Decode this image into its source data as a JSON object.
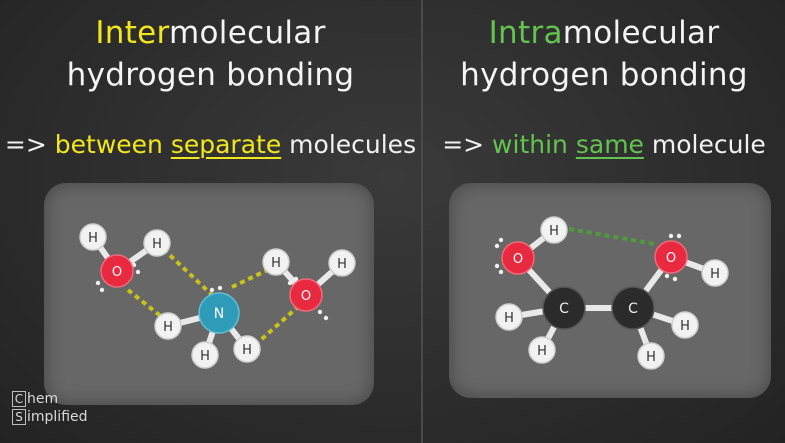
{
  "left_panel": {
    "title_highlight": "Inter",
    "title_rest": "molecular",
    "title_line2": "hydrogen bonding",
    "arrow": "=>",
    "sub_pre": "between",
    "sub_emph": "separate",
    "sub_post": "molecules",
    "atoms": {
      "H": "H",
      "O": "O",
      "N": "N"
    }
  },
  "right_panel": {
    "title_highlight": "Intra",
    "title_rest": "molecular",
    "title_line2": "hydrogen bonding",
    "arrow": "=>",
    "sub_pre": "within",
    "sub_emph": "same",
    "sub_post": "molecule",
    "atoms": {
      "H": "H",
      "O": "O",
      "C": "C"
    }
  },
  "logo": {
    "letter1": "C",
    "word1": "hem",
    "letter2": "S",
    "word2": "implified"
  },
  "colors": {
    "yellow": "#f2e71b",
    "green": "#62c34f",
    "oxygen": "#e8293f",
    "nitrogen": "#2e9bb8",
    "carbon": "#2b2b2b",
    "hydrogen": "#f2f2f2"
  }
}
